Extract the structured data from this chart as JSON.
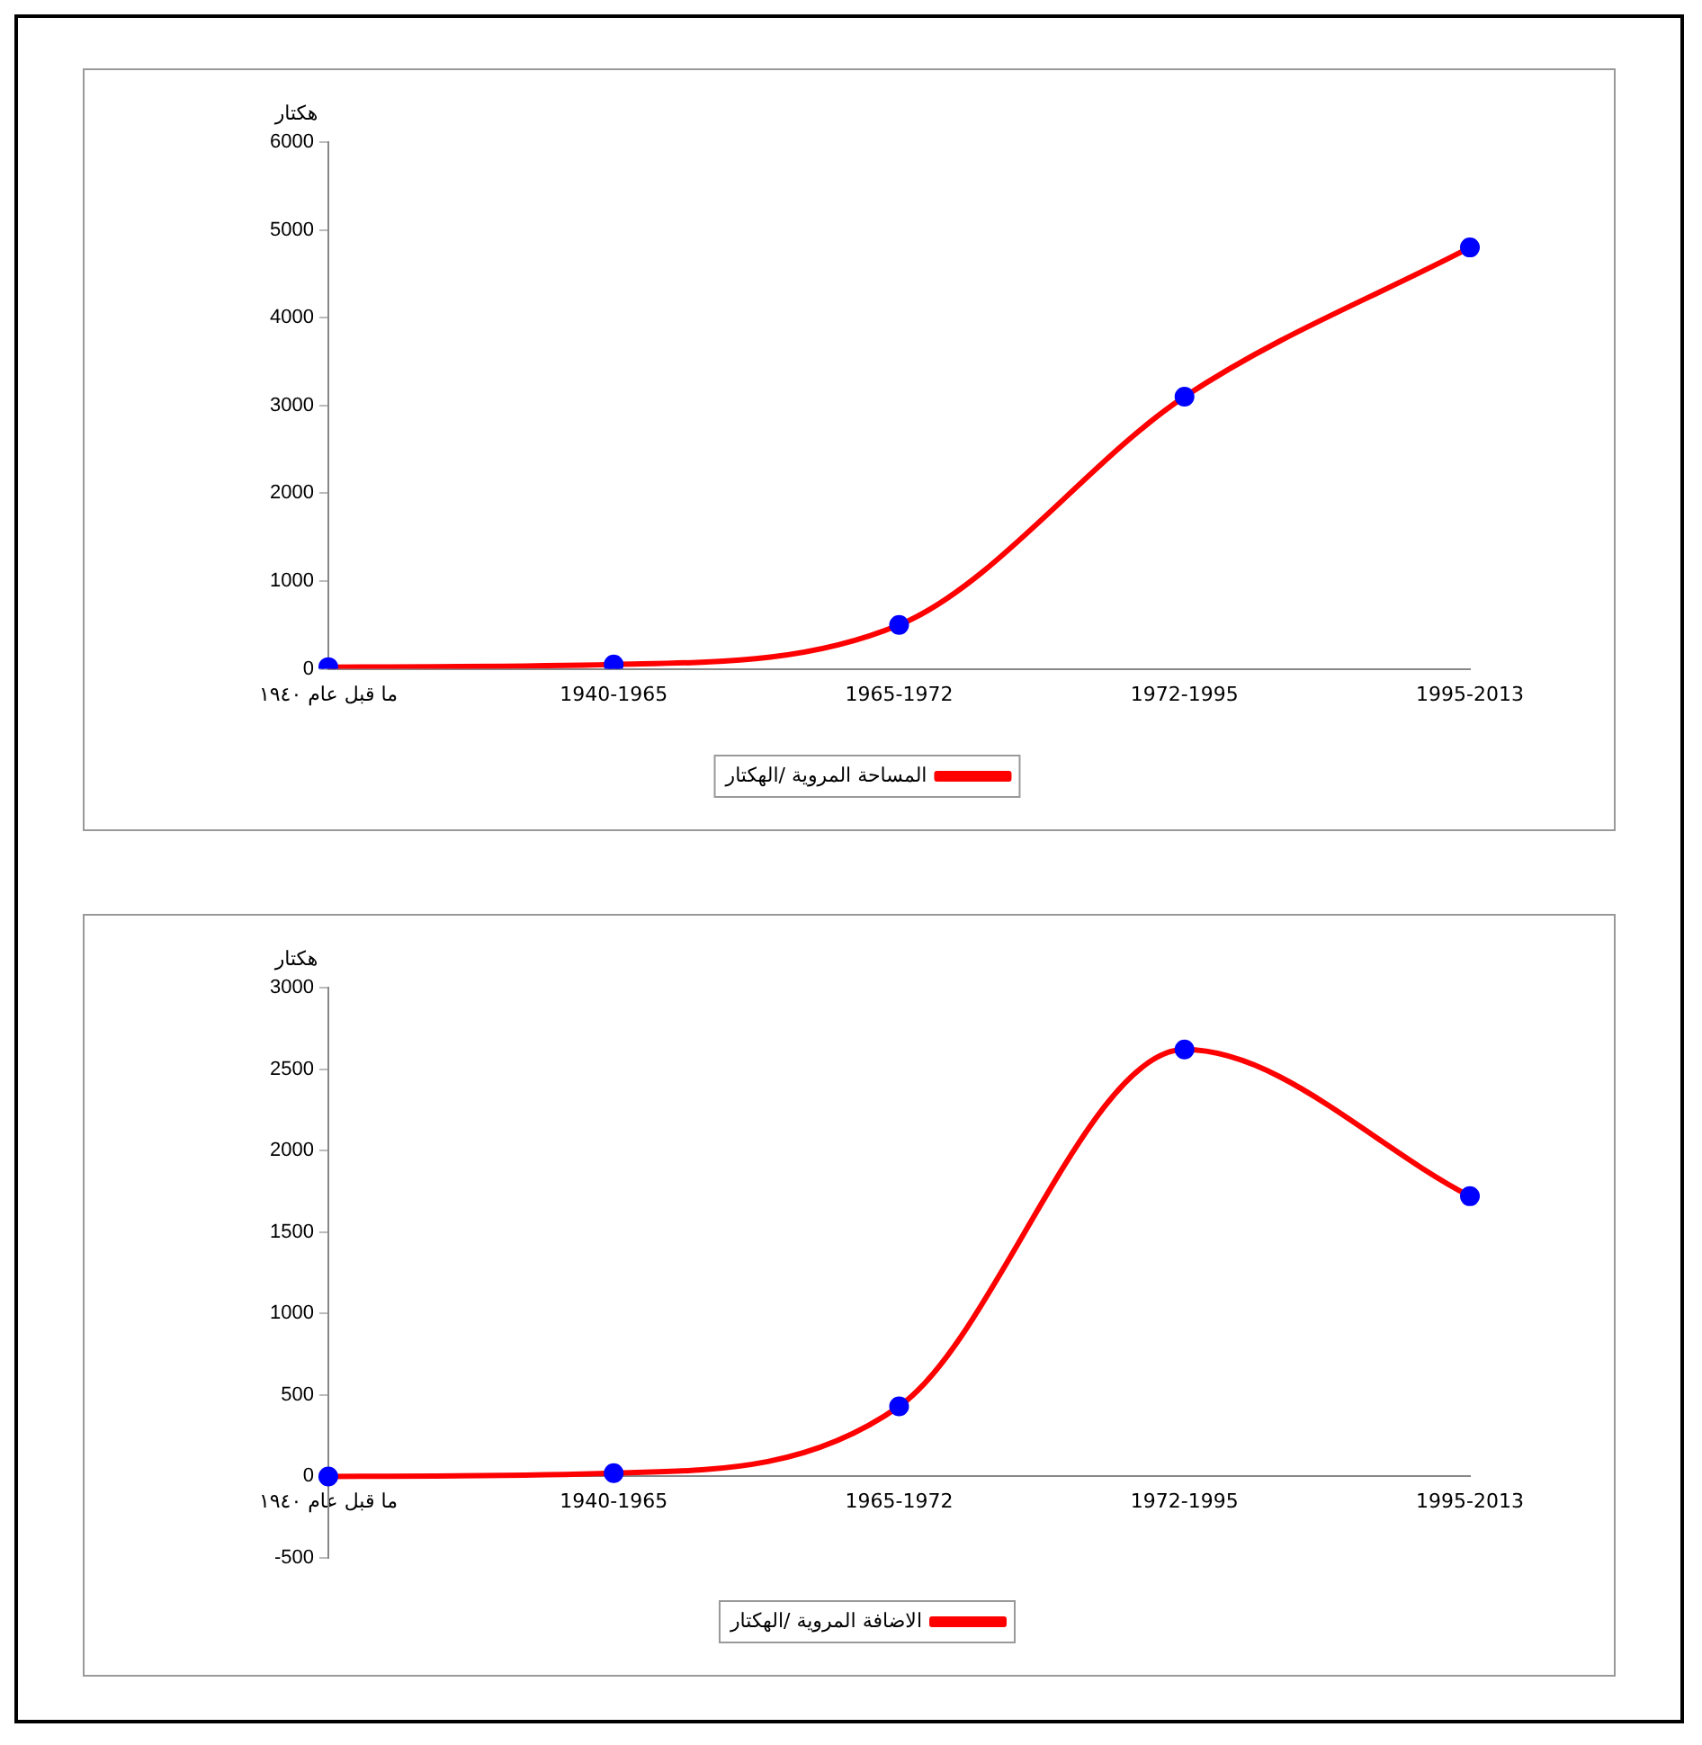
{
  "chart_data": [
    {
      "type": "line",
      "ylabel": "هكتار",
      "categories": [
        "ما قبل عام ١٩٤٠",
        "1940-1965",
        "1965-1972",
        "1972-1995",
        "1995-2013"
      ],
      "series": [
        {
          "name": "المساحة المروية /الهكتار",
          "color": "#ff0000",
          "values": [
            20,
            50,
            500,
            3100,
            4800
          ]
        }
      ],
      "ylim": [
        0,
        6000
      ],
      "yticks": [
        0,
        1000,
        2000,
        3000,
        4000,
        5000,
        6000
      ],
      "marker": "circle",
      "legend": "bottom",
      "grid": false
    },
    {
      "type": "line",
      "ylabel": "هكتار",
      "categories": [
        "ما قبل عام ١٩٤٠",
        "1940-1965",
        "1965-1972",
        "1972-1995",
        "1995-2013"
      ],
      "series": [
        {
          "name": "الاضافة المروية /الهكتار",
          "color": "#ff0000",
          "values": [
            0,
            20,
            430,
            2620,
            1720
          ]
        }
      ],
      "ylim": [
        -500,
        3000
      ],
      "yticks": [
        -500,
        0,
        500,
        1000,
        1500,
        2000,
        2500,
        3000
      ],
      "marker": "circle",
      "legend": "bottom",
      "grid": false
    }
  ]
}
